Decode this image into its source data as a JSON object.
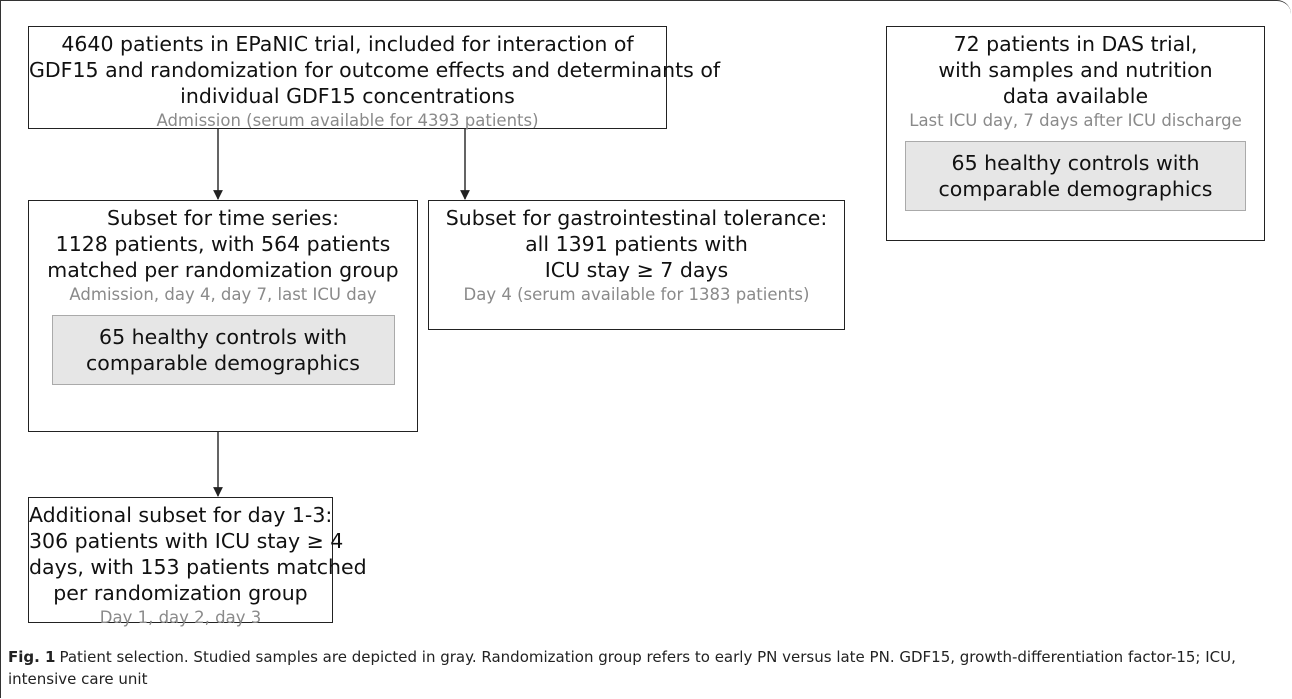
{
  "nodes": [
    {
      "lines": [
        "4640 patients in EPaNIC trial, included for interaction of",
        "GDF15 and randomization for outcome effects and determinants of",
        "individual GDF15 concentrations"
      ],
      "note": "Admission (serum available for 4393 patients)"
    },
    {
      "lines": [
        "Subset for time series:",
        "1128 patients, with 564 patients",
        "matched per randomization group"
      ],
      "note": "Admission, day 4, day 7, last ICU day",
      "control": [
        "65 healthy controls with",
        "comparable demographics"
      ]
    },
    {
      "lines": [
        "Subset for gastrointestinal tolerance:",
        "all 1391 patients with",
        "ICU stay ≥ 7 days"
      ],
      "note": "Day 4 (serum available for 1383 patients)"
    },
    {
      "lines": [
        "Additional subset for day 1-3:",
        "306 patients with ICU stay ≥ 4",
        "days, with 153 patients matched",
        "per randomization group"
      ],
      "note": "Day 1, day 2, day 3"
    },
    {
      "lines": [
        "72 patients in DAS trial,",
        "with samples and nutrition",
        "data available"
      ],
      "note": "Last ICU day, 7 days after ICU discharge",
      "control": [
        "65 healthy controls with",
        "comparable demographics"
      ]
    }
  ],
  "caption": {
    "label": "Fig. 1",
    "text": "Patient selection. Studied samples are depicted in gray. Randomization group refers to early PN versus late PN. GDF15, growth-differentiation factor-15; ICU, intensive care unit"
  }
}
